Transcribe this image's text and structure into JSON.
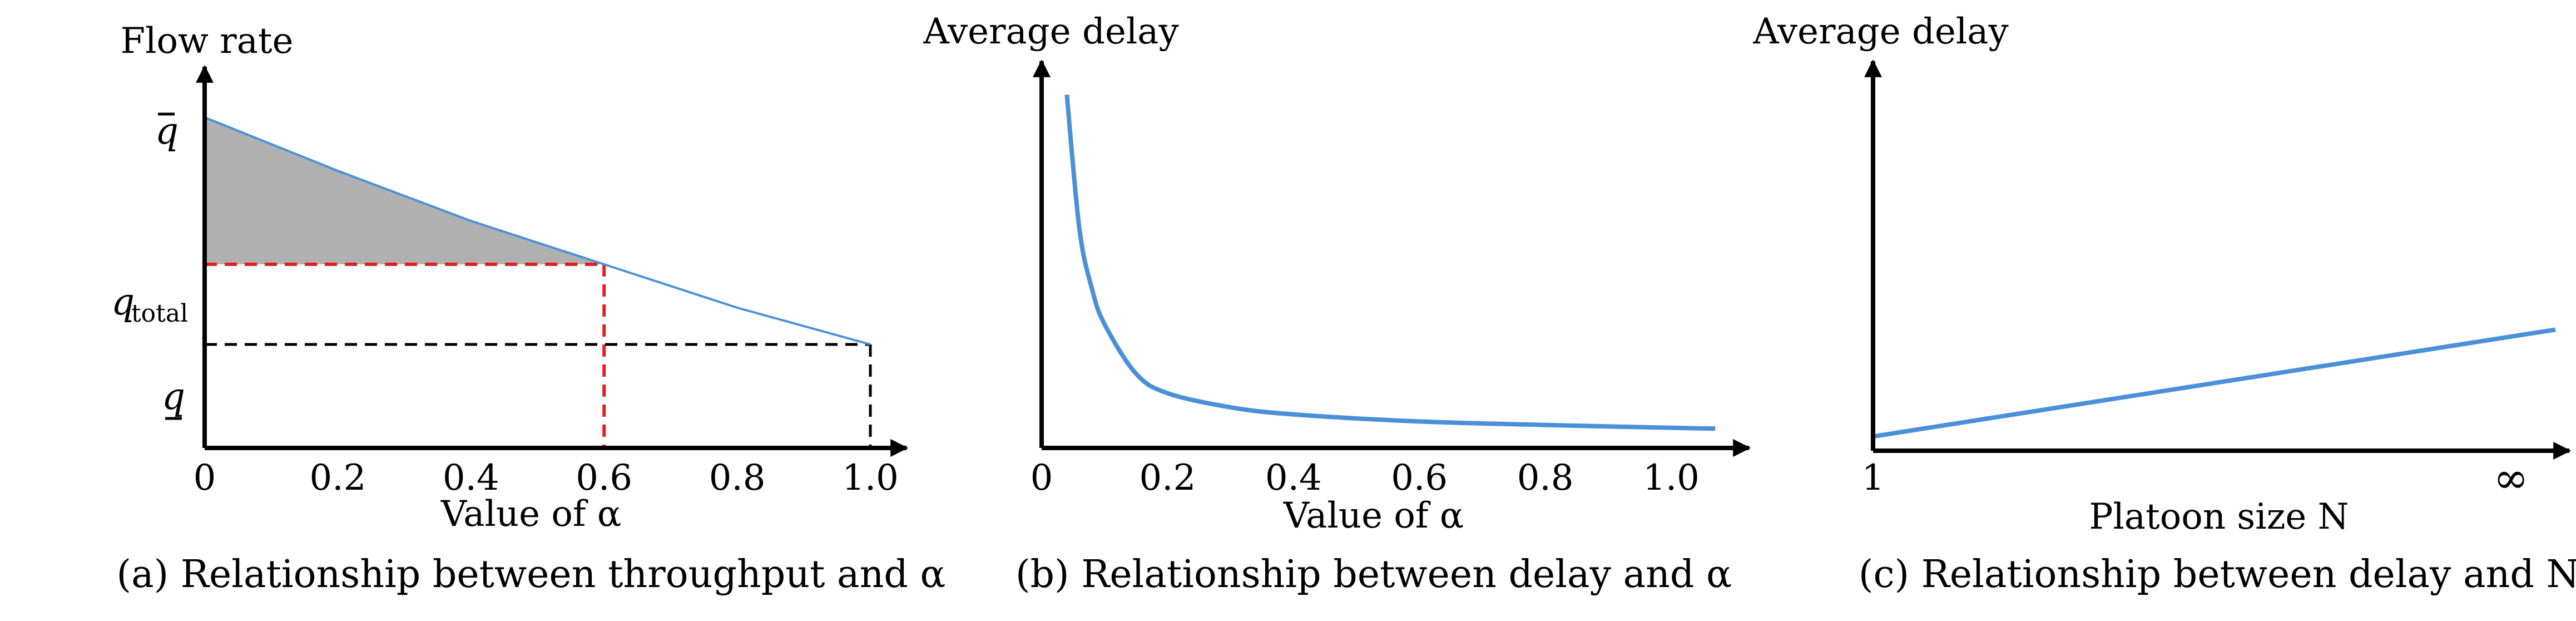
{
  "colors": {
    "curve": "#4a90d9",
    "shade": "#b0b0b0",
    "red_guide": "#e02020",
    "black_guide": "#000000"
  },
  "chart_data": [
    {
      "type": "line",
      "ylabel": "Flow rate",
      "xlabel": "Value of α",
      "caption": "(a) Relationship between throughput and α",
      "x_ticks": [
        "0",
        "0.2",
        "0.4",
        "0.6",
        "0.8",
        "1.0"
      ],
      "y_tick_labels": {
        "q_bar": "q̄",
        "q_total": "q",
        "q_total_sub": "total",
        "q_under": "q"
      },
      "xlim": [
        0,
        1.1
      ],
      "ylim": [
        0,
        1.0
      ],
      "series": [
        {
          "x": [
            0,
            0.2,
            0.4,
            0.6,
            0.8,
            1.0
          ],
          "y": [
            0.99,
            0.83,
            0.68,
            0.55,
            0.42,
            0.31
          ]
        }
      ],
      "shaded_region": {
        "x_from": 0,
        "x_to": 0.6,
        "y_lower": 0.55
      },
      "red_guide": {
        "x": 0.6,
        "y": 0.55
      },
      "black_guide": {
        "x": 1.0,
        "y": 0.31
      }
    },
    {
      "type": "line",
      "ylabel": "Average delay",
      "xlabel": "Value of α",
      "caption": "(b) Relationship between delay and α",
      "x_ticks": [
        "0",
        "0.2",
        "0.4",
        "0.6",
        "0.8",
        "1.0"
      ],
      "xlim": [
        0,
        1.1
      ],
      "series": [
        {
          "x": [
            0.04,
            0.06,
            0.08,
            0.1,
            0.15,
            0.2,
            0.3,
            0.4,
            0.6,
            0.8,
            1.0,
            1.07
          ],
          "y": [
            1.0,
            0.62,
            0.45,
            0.35,
            0.21,
            0.155,
            0.115,
            0.095,
            0.075,
            0.065,
            0.057,
            0.055
          ]
        }
      ]
    },
    {
      "type": "line",
      "ylabel": "Average delay",
      "xlabel": "Platoon size N",
      "caption": "(c) Relationship between delay and N",
      "x_ticks": [
        "1",
        "∞"
      ],
      "series": [
        {
          "x": [
            1,
            "∞"
          ],
          "y": [
            0.04,
            0.34
          ]
        }
      ]
    }
  ]
}
